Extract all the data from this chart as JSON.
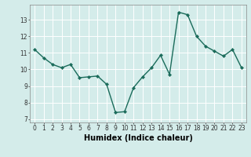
{
  "x": [
    0,
    1,
    2,
    3,
    4,
    5,
    6,
    7,
    8,
    9,
    10,
    11,
    12,
    13,
    14,
    15,
    16,
    17,
    18,
    19,
    20,
    21,
    22,
    23
  ],
  "y": [
    11.2,
    10.7,
    10.3,
    10.1,
    10.3,
    9.5,
    9.55,
    9.6,
    9.1,
    7.4,
    7.45,
    8.9,
    9.55,
    10.1,
    10.85,
    9.7,
    13.45,
    13.3,
    12.0,
    11.4,
    11.1,
    10.8,
    11.2,
    10.1
  ],
  "line_color": "#1a6b5a",
  "marker_color": "#1a6b5a",
  "bg_color": "#d4ecea",
  "grid_color": "#ffffff",
  "xlabel": "Humidex (Indice chaleur)",
  "xlim": [
    -0.5,
    23.5
  ],
  "ylim": [
    6.8,
    13.9
  ],
  "yticks": [
    7,
    8,
    9,
    10,
    11,
    12,
    13
  ],
  "xticks": [
    0,
    1,
    2,
    3,
    4,
    5,
    6,
    7,
    8,
    9,
    10,
    11,
    12,
    13,
    14,
    15,
    16,
    17,
    18,
    19,
    20,
    21,
    22,
    23
  ],
  "tick_fontsize": 5.5,
  "xlabel_fontsize": 7.0,
  "linewidth": 1.0,
  "markersize": 2.2
}
